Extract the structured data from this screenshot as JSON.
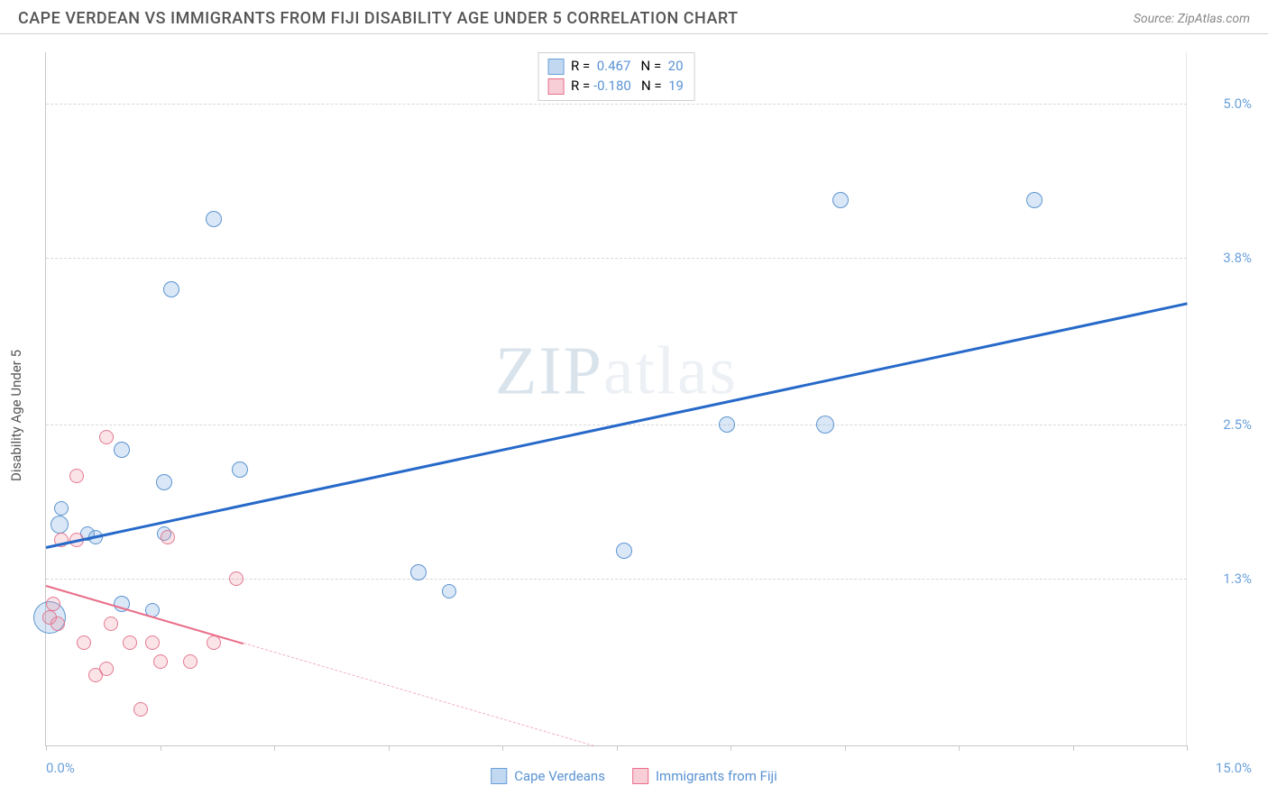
{
  "header": {
    "title": "CAPE VERDEAN VS IMMIGRANTS FROM FIJI DISABILITY AGE UNDER 5 CORRELATION CHART",
    "source_label": "Source: ZipAtlas.com"
  },
  "chart": {
    "type": "scatter",
    "y_axis_title": "Disability Age Under 5",
    "xlim": [
      0,
      15
    ],
    "ylim": [
      0,
      5.4
    ],
    "y_grid_values": [
      1.3,
      2.5,
      3.8,
      5.0
    ],
    "y_grid_labels": [
      "1.3%",
      "2.5%",
      "3.8%",
      "5.0%"
    ],
    "x_tick_positions": [
      0,
      1.5,
      3.0,
      4.5,
      6.0,
      7.5,
      9.0,
      10.5,
      12.0,
      13.5,
      15.0
    ],
    "x_min_label": "0.0%",
    "x_max_label": "15.0%",
    "background_color": "#ffffff",
    "grid_color": "#d8d8d8",
    "axis_color": "#c8c8c8",
    "label_color": "#6aa0db",
    "watermark": {
      "part1": "ZIP",
      "part2": "atlas"
    },
    "series": [
      {
        "key": "blue",
        "name": "Cape Verdeans",
        "color_fill": "rgba(117,169,222,0.28)",
        "color_stroke": "#508ccd",
        "R": "0.467",
        "N": "20",
        "points": [
          {
            "x": 0.05,
            "y": 1.0,
            "r": 18
          },
          {
            "x": 0.18,
            "y": 1.72,
            "r": 10
          },
          {
            "x": 0.2,
            "y": 1.85,
            "r": 8
          },
          {
            "x": 0.55,
            "y": 1.65,
            "r": 8
          },
          {
            "x": 0.65,
            "y": 1.62,
            "r": 8
          },
          {
            "x": 1.0,
            "y": 1.1,
            "r": 9
          },
          {
            "x": 1.4,
            "y": 1.05,
            "r": 8
          },
          {
            "x": 1.55,
            "y": 2.05,
            "r": 9
          },
          {
            "x": 1.0,
            "y": 2.3,
            "r": 9
          },
          {
            "x": 1.55,
            "y": 1.65,
            "r": 8
          },
          {
            "x": 1.65,
            "y": 3.55,
            "r": 9
          },
          {
            "x": 2.2,
            "y": 4.1,
            "r": 9
          },
          {
            "x": 2.55,
            "y": 2.15,
            "r": 9
          },
          {
            "x": 4.9,
            "y": 1.35,
            "r": 9
          },
          {
            "x": 5.3,
            "y": 1.2,
            "r": 8
          },
          {
            "x": 7.6,
            "y": 1.52,
            "r": 9
          },
          {
            "x": 8.95,
            "y": 2.5,
            "r": 9
          },
          {
            "x": 10.25,
            "y": 2.5,
            "r": 10
          },
          {
            "x": 10.45,
            "y": 4.25,
            "r": 9
          },
          {
            "x": 13.0,
            "y": 4.25,
            "r": 9
          }
        ],
        "trend": {
          "x1": 0,
          "y1": 1.55,
          "x2": 15,
          "y2": 3.45,
          "solid_frac": 1.0
        }
      },
      {
        "key": "pink",
        "name": "Immigrants from Fiji",
        "color_fill": "rgba(238,146,165,0.25)",
        "color_stroke": "#ea6d89",
        "R": "-0.180",
        "N": "19",
        "points": [
          {
            "x": 0.05,
            "y": 1.0,
            "r": 8
          },
          {
            "x": 0.1,
            "y": 1.1,
            "r": 8
          },
          {
            "x": 0.15,
            "y": 0.95,
            "r": 8
          },
          {
            "x": 0.2,
            "y": 1.6,
            "r": 8
          },
          {
            "x": 0.4,
            "y": 2.1,
            "r": 8
          },
          {
            "x": 0.4,
            "y": 1.6,
            "r": 8
          },
          {
            "x": 0.5,
            "y": 0.8,
            "r": 8
          },
          {
            "x": 0.65,
            "y": 0.55,
            "r": 8
          },
          {
            "x": 0.8,
            "y": 2.4,
            "r": 8
          },
          {
            "x": 0.85,
            "y": 0.95,
            "r": 8
          },
          {
            "x": 0.8,
            "y": 0.6,
            "r": 8
          },
          {
            "x": 1.1,
            "y": 0.8,
            "r": 8
          },
          {
            "x": 1.25,
            "y": 0.28,
            "r": 8
          },
          {
            "x": 1.4,
            "y": 0.8,
            "r": 8
          },
          {
            "x": 1.5,
            "y": 0.65,
            "r": 8
          },
          {
            "x": 1.6,
            "y": 1.62,
            "r": 8
          },
          {
            "x": 1.9,
            "y": 0.65,
            "r": 8
          },
          {
            "x": 2.2,
            "y": 0.8,
            "r": 8
          },
          {
            "x": 2.5,
            "y": 1.3,
            "r": 8
          }
        ],
        "trend": {
          "x1": 0,
          "y1": 1.25,
          "x2": 7.2,
          "y2": 0.0,
          "solid_frac": 0.36
        }
      }
    ],
    "stats_box": {
      "rows": [
        {
          "swatch": "blue",
          "r_label": "R = ",
          "r_val": " 0.467",
          "n_label": "   N = ",
          "n_val": " 20"
        },
        {
          "swatch": "pink",
          "r_label": "R = ",
          "r_val": "-0.180",
          "n_label": "   N = ",
          "n_val": " 19"
        }
      ]
    },
    "legend": [
      {
        "swatch": "blue",
        "label": "Cape Verdeans"
      },
      {
        "swatch": "pink",
        "label": "Immigrants from Fiji"
      }
    ]
  }
}
